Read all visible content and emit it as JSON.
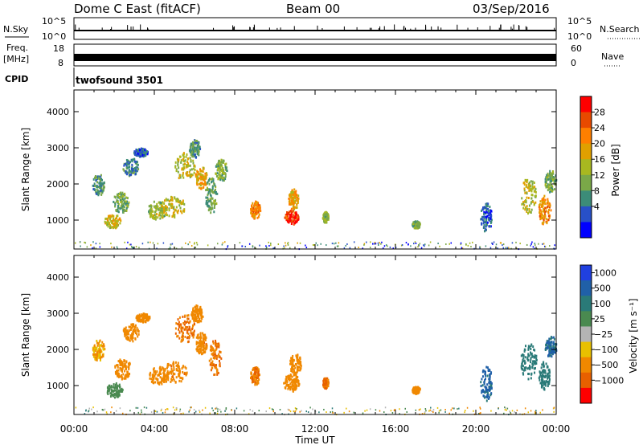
{
  "header": {
    "title": "Dome C East (fitACF)",
    "beam": "Beam 00",
    "date": "03/Sep/2016"
  },
  "strips": {
    "nsky_label": "N.Sky",
    "nsky_ticks": [
      "10^5",
      "10^0"
    ],
    "nsearch_label": "N.Search",
    "nsearch_ticks": [
      "10^5",
      "10^0"
    ],
    "freq_label_line1": "Freq.",
    "freq_label_line2": "[MHz]",
    "freq_ticks": [
      "18",
      "8"
    ],
    "nave_label": "Nave",
    "nave_ticks": [
      "60",
      "0"
    ],
    "cpid_label": "CPID",
    "cpid_text": "twofsound 3501"
  },
  "power_colorbar": {
    "label": "Power [dB]",
    "ticks": [
      "28",
      "24",
      "20",
      "16",
      "12",
      "8",
      "4"
    ],
    "colors": [
      "#ff0000",
      "#e84a00",
      "#ff7f00",
      "#e0a000",
      "#a8b820",
      "#7aa848",
      "#3c8c78",
      "#2850c8",
      "#0000ff"
    ]
  },
  "velocity_colorbar": {
    "label": "Velocity [m s⁻¹]",
    "ticks": [
      "1000",
      "500",
      "100",
      "25",
      "−25",
      "−100",
      "−500",
      "−1000"
    ],
    "colors": [
      "#2040e0",
      "#2060a8",
      "#2a7a78",
      "#4a8a50",
      "#b4b4b4",
      "#e8c000",
      "#f08800",
      "#e86000",
      "#ff0000"
    ]
  },
  "chart_data": [
    {
      "type": "heatmap",
      "name": "power",
      "ylabel": "Slant Range [km]",
      "xlabel": "",
      "ylim": [
        200,
        4600
      ],
      "yticks": [
        "1000",
        "2000",
        "3000",
        "4000"
      ],
      "ytick_values": [
        1000,
        2000,
        3000,
        4000
      ],
      "colorbar": "Power [dB]",
      "color_range": [
        0,
        32
      ],
      "blobs": [
        {
          "t": 1.2,
          "r": 2000,
          "dt": 0.3,
          "dr": 300,
          "v": 10
        },
        {
          "t": 1.9,
          "r": 1000,
          "dt": 0.4,
          "dr": 200,
          "v": 18
        },
        {
          "t": 2.3,
          "r": 1500,
          "dt": 0.4,
          "dr": 300,
          "v": 12
        },
        {
          "t": 2.8,
          "r": 2500,
          "dt": 0.4,
          "dr": 250,
          "v": 8
        },
        {
          "t": 3.3,
          "r": 2900,
          "dt": 0.35,
          "dr": 120,
          "v": 6
        },
        {
          "t": 4.1,
          "r": 1300,
          "dt": 0.5,
          "dr": 250,
          "v": 14
        },
        {
          "t": 4.9,
          "r": 1400,
          "dt": 0.6,
          "dr": 300,
          "v": 17
        },
        {
          "t": 5.5,
          "r": 2500,
          "dt": 0.5,
          "dr": 400,
          "v": 16
        },
        {
          "t": 6.0,
          "r": 3000,
          "dt": 0.3,
          "dr": 250,
          "v": 10
        },
        {
          "t": 6.3,
          "r": 2200,
          "dt": 0.3,
          "dr": 300,
          "v": 20
        },
        {
          "t": 6.8,
          "r": 1700,
          "dt": 0.3,
          "dr": 500,
          "v": 11
        },
        {
          "t": 7.3,
          "r": 2400,
          "dt": 0.3,
          "dr": 300,
          "v": 13
        },
        {
          "t": 9.0,
          "r": 1300,
          "dt": 0.25,
          "dr": 250,
          "v": 22
        },
        {
          "t": 10.8,
          "r": 1100,
          "dt": 0.35,
          "dr": 200,
          "v": 28
        },
        {
          "t": 10.9,
          "r": 1600,
          "dt": 0.25,
          "dr": 300,
          "v": 20
        },
        {
          "t": 12.5,
          "r": 1100,
          "dt": 0.15,
          "dr": 150,
          "v": 14
        },
        {
          "t": 17.0,
          "r": 900,
          "dt": 0.2,
          "dr": 100,
          "v": 12
        },
        {
          "t": 20.5,
          "r": 1100,
          "dt": 0.3,
          "dr": 400,
          "v": 6
        },
        {
          "t": 22.6,
          "r": 1700,
          "dt": 0.4,
          "dr": 500,
          "v": 16
        },
        {
          "t": 23.4,
          "r": 1300,
          "dt": 0.3,
          "dr": 400,
          "v": 22
        },
        {
          "t": 23.7,
          "r": 2100,
          "dt": 0.3,
          "dr": 300,
          "v": 12
        }
      ]
    },
    {
      "type": "heatmap",
      "name": "velocity",
      "ylabel": "Slant Range [km]",
      "xlabel": "Time UT",
      "ylim": [
        200,
        4600
      ],
      "yticks": [
        "1000",
        "2000",
        "3000",
        "4000"
      ],
      "ytick_values": [
        1000,
        2000,
        3000,
        4000
      ],
      "xticks": [
        "00:00",
        "04:00",
        "08:00",
        "12:00",
        "16:00",
        "20:00",
        "00:00"
      ],
      "xlim_hours": [
        0,
        24
      ],
      "colorbar": "Velocity [m s⁻¹]",
      "blobs": [
        {
          "t": 1.2,
          "r": 2000,
          "dt": 0.3,
          "dr": 300,
          "v": -100
        },
        {
          "t": 2.0,
          "r": 900,
          "dt": 0.4,
          "dr": 200,
          "v": 60
        },
        {
          "t": 2.4,
          "r": 1500,
          "dt": 0.4,
          "dr": 300,
          "v": -200
        },
        {
          "t": 2.8,
          "r": 2500,
          "dt": 0.4,
          "dr": 250,
          "v": -200
        },
        {
          "t": 3.4,
          "r": 2900,
          "dt": 0.35,
          "dr": 120,
          "v": -150
        },
        {
          "t": 4.2,
          "r": 1300,
          "dt": 0.5,
          "dr": 250,
          "v": -300
        },
        {
          "t": 5.0,
          "r": 1400,
          "dt": 0.6,
          "dr": 300,
          "v": -400
        },
        {
          "t": 5.5,
          "r": 2600,
          "dt": 0.5,
          "dr": 400,
          "v": -500
        },
        {
          "t": 6.1,
          "r": 3000,
          "dt": 0.3,
          "dr": 250,
          "v": -300
        },
        {
          "t": 6.3,
          "r": 2200,
          "dt": 0.3,
          "dr": 300,
          "v": -400
        },
        {
          "t": 7.0,
          "r": 1800,
          "dt": 0.3,
          "dr": 500,
          "v": -500
        },
        {
          "t": 9.0,
          "r": 1300,
          "dt": 0.25,
          "dr": 250,
          "v": -500
        },
        {
          "t": 10.8,
          "r": 1100,
          "dt": 0.4,
          "dr": 250,
          "v": -300
        },
        {
          "t": 11.0,
          "r": 1600,
          "dt": 0.3,
          "dr": 300,
          "v": -200
        },
        {
          "t": 12.5,
          "r": 1100,
          "dt": 0.15,
          "dr": 150,
          "v": -500
        },
        {
          "t": 17.0,
          "r": 900,
          "dt": 0.2,
          "dr": 100,
          "v": -300
        },
        {
          "t": 20.5,
          "r": 1100,
          "dt": 0.3,
          "dr": 500,
          "v": 600
        },
        {
          "t": 22.6,
          "r": 1700,
          "dt": 0.4,
          "dr": 500,
          "v": 200
        },
        {
          "t": 23.4,
          "r": 1300,
          "dt": 0.3,
          "dr": 400,
          "v": 150
        },
        {
          "t": 23.7,
          "r": 2100,
          "dt": 0.3,
          "dr": 300,
          "v": 600
        }
      ]
    }
  ]
}
